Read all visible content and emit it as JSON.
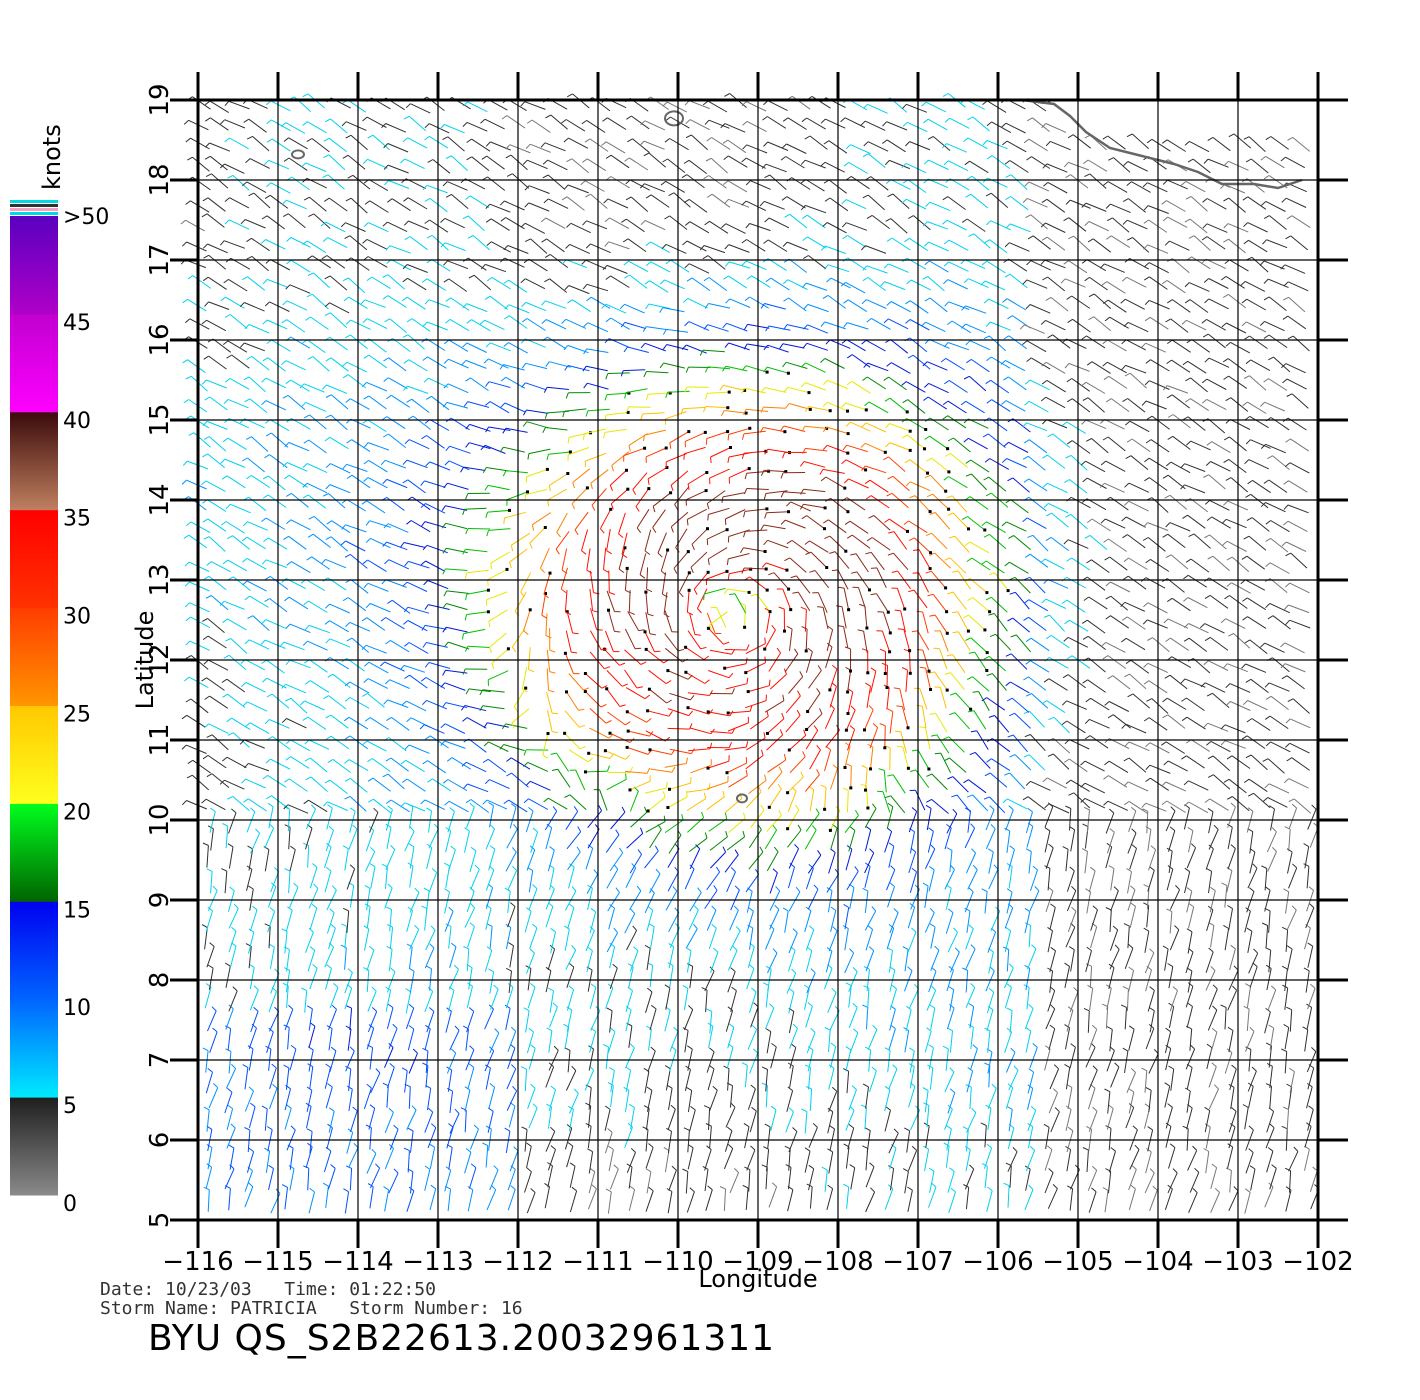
{
  "legend": {
    "unit": "knots",
    "labels": [
      ">50",
      "45",
      "40",
      "35",
      "30",
      "25",
      "20",
      "15",
      "10",
      "5",
      "0"
    ],
    "bands": [
      {
        "min": 0,
        "max": 5,
        "colors": [
          "#8a8a8a",
          "#1e1e1e"
        ]
      },
      {
        "min": 5,
        "max": 10,
        "colors": [
          "#00eaff",
          "#0064ff"
        ]
      },
      {
        "min": 10,
        "max": 15,
        "colors": [
          "#0064ff",
          "#0000f0"
        ]
      },
      {
        "min": 15,
        "max": 20,
        "colors": [
          "#006400",
          "#00ff1e"
        ]
      },
      {
        "min": 20,
        "max": 25,
        "colors": [
          "#ffff1e",
          "#ffc800"
        ]
      },
      {
        "min": 25,
        "max": 30,
        "colors": [
          "#ff9600",
          "#ff3c00"
        ]
      },
      {
        "min": 30,
        "max": 35,
        "colors": [
          "#ff3200",
          "#ff0000"
        ]
      },
      {
        "min": 35,
        "max": 40,
        "colors": [
          "#c08060",
          "#3a0a0a"
        ]
      },
      {
        "min": 40,
        "max": 45,
        "colors": [
          "#ff00ff",
          "#c000d0"
        ]
      },
      {
        "min": 45,
        "max": 50,
        "colors": [
          "#b000c8",
          "#5a00c0"
        ]
      }
    ]
  },
  "map": {
    "xlabel": "Longitude",
    "ylabel": "Latitude",
    "lon_range": [
      -116,
      -102
    ],
    "lat_range": [
      5,
      19
    ],
    "lon_ticks": [
      "-116",
      "-115",
      "-114",
      "-113",
      "-112",
      "-111",
      "-110",
      "-109",
      "-108",
      "-107",
      "-106",
      "-105",
      "-104",
      "-103",
      "-102"
    ],
    "lat_ticks": [
      "5",
      "6",
      "7",
      "8",
      "9",
      "10",
      "11",
      "12",
      "13",
      "14",
      "15",
      "16",
      "17",
      "18",
      "19"
    ],
    "grid": true,
    "storm_center": {
      "lon": -109.2,
      "lat": 12.6
    },
    "coastline_color": "#666666"
  },
  "info": {
    "line1": "Date: 10/23/03   Time: 01:22:50",
    "line2": "Storm Name: PATRICIA   Storm Number: 16"
  },
  "product_id": "BYU QS_S2B22613.20032961311"
}
